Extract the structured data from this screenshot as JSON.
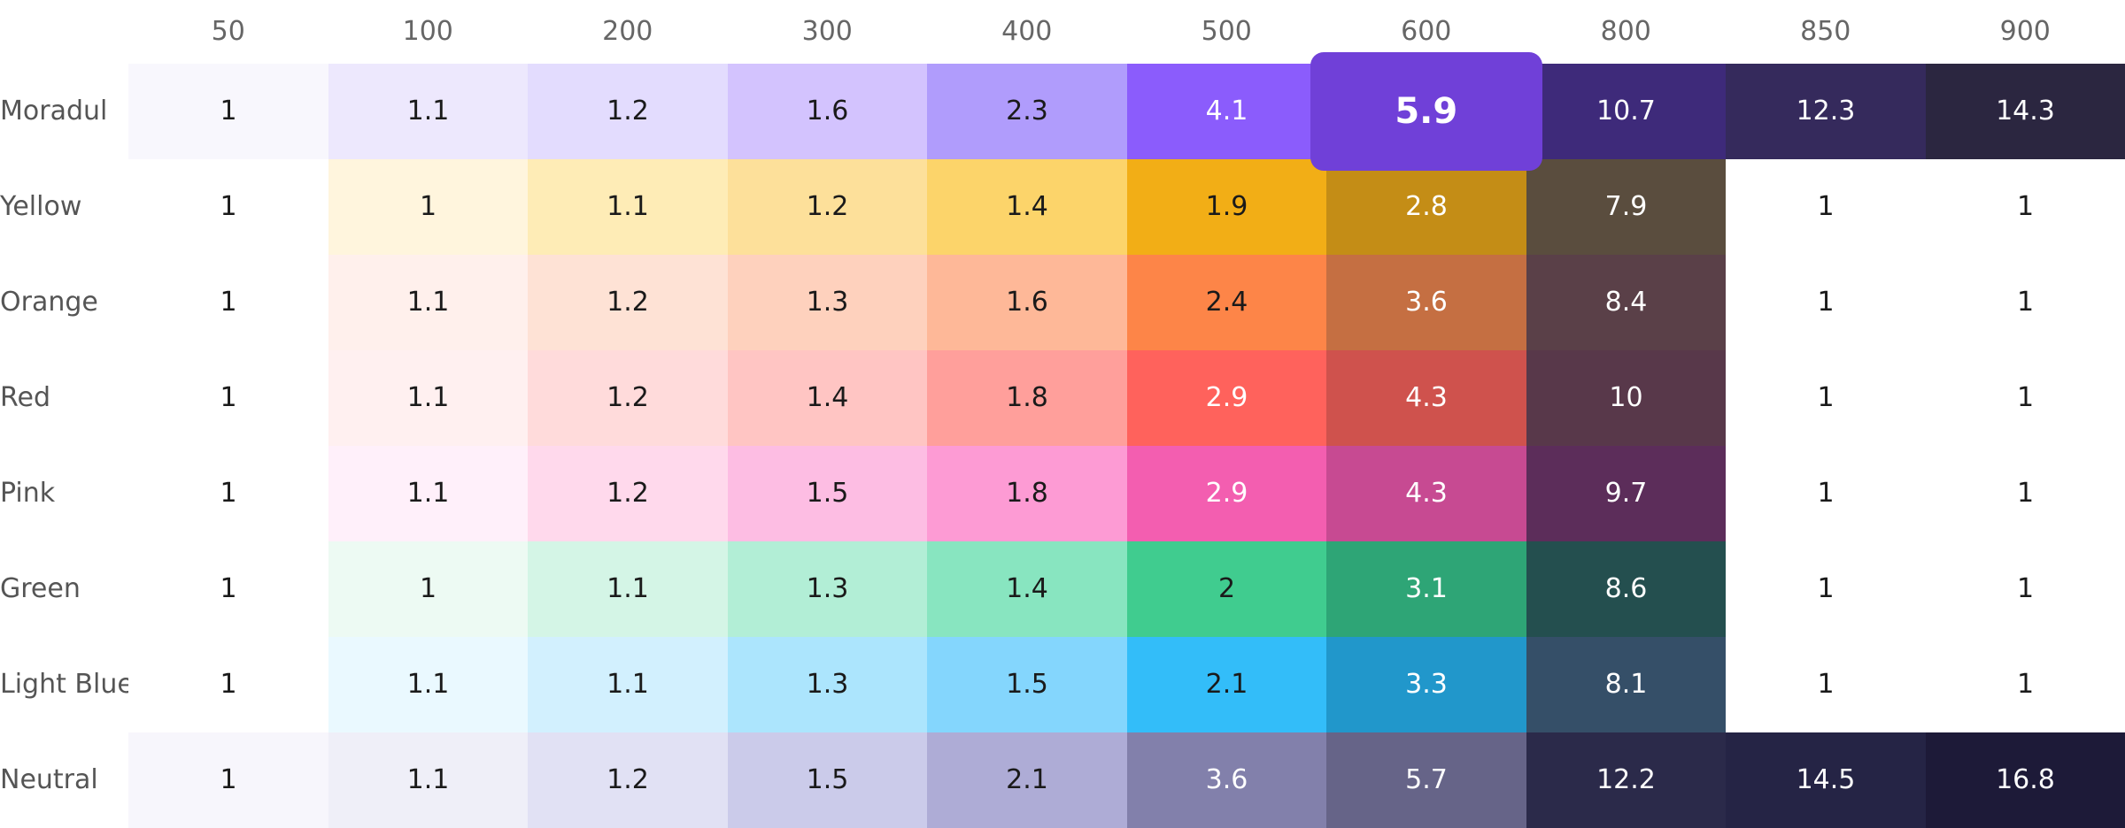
{
  "header": {
    "columns": [
      50,
      100,
      200,
      300,
      400,
      500,
      600,
      800,
      850,
      900
    ]
  },
  "rows": [
    {
      "label": "Moradul",
      "values": [
        1,
        1.1,
        1.2,
        1.6,
        2.3,
        4.1,
        5.9,
        10.7,
        12.3,
        14.3
      ],
      "colors": [
        "#f8f7fd",
        "#ede8fd",
        "#e3dcfe",
        "#d3c3fe",
        "#b09cfc",
        "#8b5cfc",
        "#7040d8",
        "#3e2a7a",
        "#352a5c",
        "#2b2640"
      ]
    },
    {
      "label": "Yellow",
      "values": [
        1,
        1,
        1.1,
        1.2,
        1.4,
        1.9,
        2.8,
        7.9,
        1,
        1
      ],
      "colors": [
        "#ffffff",
        "#fff5dd",
        "#feecb6",
        "#fde09a",
        "#fcd46a",
        "#f2ae16",
        "#c48d16",
        "#5a4d3e",
        "#ffffff",
        "#ffffff"
      ]
    },
    {
      "label": "Orange",
      "values": [
        1,
        1.1,
        1.2,
        1.3,
        1.6,
        2.4,
        3.6,
        8.4,
        1,
        1
      ],
      "colors": [
        "#ffffff",
        "#fff0ec",
        "#fee2d5",
        "#fed1bd",
        "#feb898",
        "#fd8548",
        "#c56f42",
        "#5a4048",
        "#ffffff",
        "#ffffff"
      ]
    },
    {
      "label": "Red",
      "values": [
        1,
        1.1,
        1.2,
        1.4,
        1.8,
        2.9,
        4.3,
        10,
        1,
        1
      ],
      "colors": [
        "#ffffff",
        "#fff0f0",
        "#ffdbdb",
        "#ffc5c3",
        "#ff9f9b",
        "#ff625c",
        "#cf524d",
        "#58384a",
        "#ffffff",
        "#ffffff"
      ]
    },
    {
      "label": "Pink",
      "values": [
        1,
        1.1,
        1.2,
        1.5,
        1.8,
        2.9,
        4.3,
        9.7,
        1,
        1
      ],
      "colors": [
        "#ffffff",
        "#fff0fa",
        "#ffd9ec",
        "#fdbde3",
        "#fd9bd4",
        "#f35eb0",
        "#c74a92",
        "#5c2d5a",
        "#ffffff",
        "#ffffff"
      ]
    },
    {
      "label": "Green",
      "values": [
        1,
        1,
        1.1,
        1.3,
        1.4,
        2,
        3.1,
        8.6,
        1,
        1
      ],
      "colors": [
        "#ffffff",
        "#edfaf3",
        "#d4f5e6",
        "#b2eed6",
        "#88e5c0",
        "#40cc8f",
        "#2ea576",
        "#244f4f",
        "#ffffff",
        "#ffffff"
      ]
    },
    {
      "label": "Light Blue",
      "values": [
        1,
        1.1,
        1.1,
        1.3,
        1.5,
        2.1,
        3.3,
        8.1,
        1,
        1
      ],
      "colors": [
        "#ffffff",
        "#eaf9ff",
        "#d2f0fe",
        "#ace5fd",
        "#84d6fd",
        "#33bdf9",
        "#2197cb",
        "#354f68",
        "#ffffff",
        "#ffffff"
      ]
    },
    {
      "label": "Neutral",
      "values": [
        1,
        1.1,
        1.2,
        1.5,
        2.1,
        3.6,
        5.7,
        12.2,
        14.5,
        16.8
      ],
      "colors": [
        "#f7f6fc",
        "#efeff8",
        "#e1e1f4",
        "#cbcbea",
        "#aeacd6",
        "#8280ab",
        "#666488",
        "#2b2a4a",
        "#252445",
        "#1d1a38"
      ]
    }
  ]
}
